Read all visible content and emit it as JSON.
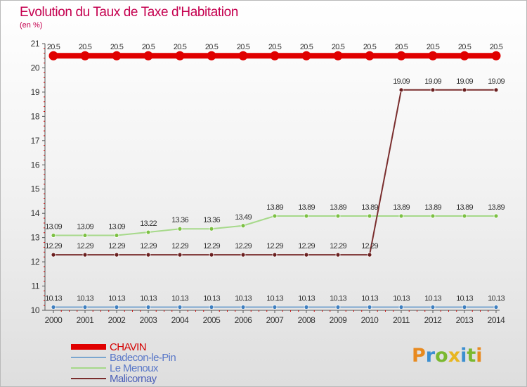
{
  "header": {
    "title": "Evolution du Taux de Taxe d'Habitation",
    "subtitle": "(en %)"
  },
  "logo": {
    "letters": [
      "P",
      "r",
      "o",
      "x",
      "i",
      "t",
      "i"
    ],
    "colors": [
      "#e88a1f",
      "#3b8fd1",
      "#7ab830",
      "#e8b620",
      "#3b8fd1",
      "#7ab830",
      "#e88a1f"
    ]
  },
  "chart_data": {
    "type": "line",
    "categories": [
      "2000",
      "2001",
      "2002",
      "2003",
      "2004",
      "2005",
      "2006",
      "2007",
      "2008",
      "2009",
      "2010",
      "2011",
      "2012",
      "2013",
      "2014"
    ],
    "ylim": [
      10,
      21
    ],
    "yticks": [
      "10",
      "11",
      "12",
      "13",
      "14",
      "15",
      "16",
      "17",
      "18",
      "19",
      "20",
      "21"
    ],
    "grid": false,
    "legend_position": "bottom-left",
    "series": [
      {
        "name": "CHAVIN",
        "color": "#e00000",
        "marker": "#e00000",
        "values": [
          20.5,
          20.5,
          20.5,
          20.5,
          20.5,
          20.5,
          20.5,
          20.5,
          20.5,
          20.5,
          20.5,
          20.5,
          20.5,
          20.5,
          20.5
        ],
        "labels": [
          "20.5",
          "20.5",
          "20.5",
          "20.5",
          "20.5",
          "20.5",
          "20.5",
          "20.5",
          "20.5",
          "20.5",
          "20.5",
          "20.5",
          "20.5",
          "20.5",
          "20.5"
        ]
      },
      {
        "name": "Badecon-le-Pin",
        "color": "#7aa6cf",
        "marker": "#3f7fbf",
        "values": [
          10.13,
          10.13,
          10.13,
          10.13,
          10.13,
          10.13,
          10.13,
          10.13,
          10.13,
          10.13,
          10.13,
          10.13,
          10.13,
          10.13,
          10.13
        ],
        "labels": [
          "10.13",
          "10.13",
          "10.13",
          "10.13",
          "10.13",
          "10.13",
          "10.13",
          "10.13",
          "10.13",
          "10.13",
          "10.13",
          "10.13",
          "10.13",
          "10.13",
          "10.13"
        ]
      },
      {
        "name": "Le Menoux",
        "color": "#a6d98a",
        "marker": "#7cc043",
        "values": [
          13.09,
          13.09,
          13.09,
          13.22,
          13.36,
          13.36,
          13.49,
          13.89,
          13.89,
          13.89,
          13.89,
          13.89,
          13.89,
          13.89,
          13.89
        ],
        "labels": [
          "13.09",
          "13.09",
          "13.09",
          "13.22",
          "13.36",
          "13.36",
          "13.49",
          "13.89",
          "13.89",
          "13.89",
          "13.89",
          "13.89",
          "13.89",
          "13.89",
          "13.89"
        ]
      },
      {
        "name": "Malicornay",
        "color": "#7a2e2e",
        "marker": "#6a1f1f",
        "values": [
          12.29,
          12.29,
          12.29,
          12.29,
          12.29,
          12.29,
          12.29,
          12.29,
          12.29,
          12.29,
          12.29,
          19.09,
          19.09,
          19.09,
          19.09
        ],
        "labels": [
          "12.29",
          "12.29",
          "12.29",
          "12.29",
          "12.29",
          "12.29",
          "12.29",
          "12.29",
          "12.29",
          "12.29",
          "12.29",
          "19.09",
          "19.09",
          "19.09",
          "19.09"
        ]
      }
    ]
  }
}
